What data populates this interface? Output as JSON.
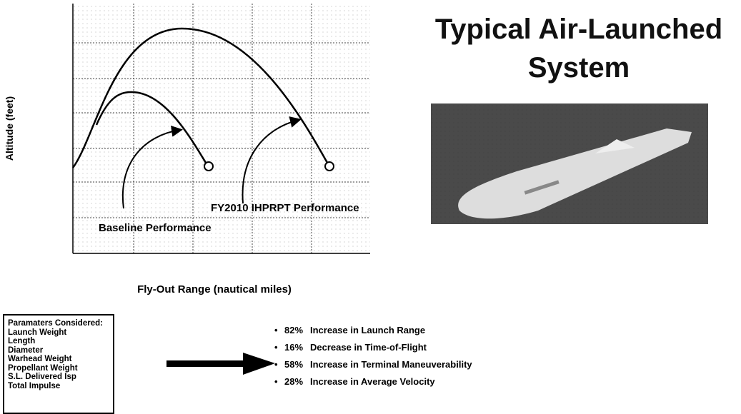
{
  "chart": {
    "y_label": "Altitude (feet)",
    "x_label": "Fly-Out Range (nautical miles)",
    "curve_labels": [
      "FY2010 IHPRPT Performance",
      "Baseline Performance"
    ]
  },
  "title": "Typical Air-Launched System",
  "parameters": {
    "heading": "Paramaters Considered:",
    "items": [
      "Launch Weight",
      "Length",
      "Diameter",
      "Warhead Weight",
      "Propellant Weight",
      "S.L. Delivered Isp",
      "Total Impulse"
    ]
  },
  "results": [
    {
      "percent": "82%",
      "text": "Increase in Launch Range"
    },
    {
      "percent": "16%",
      "text": "Decrease in Time-of-Flight"
    },
    {
      "percent": "58%",
      "text": "Increase in Terminal Maneuverability"
    },
    {
      "percent": "28%",
      "text": "Increase in Average Velocity"
    }
  ]
}
